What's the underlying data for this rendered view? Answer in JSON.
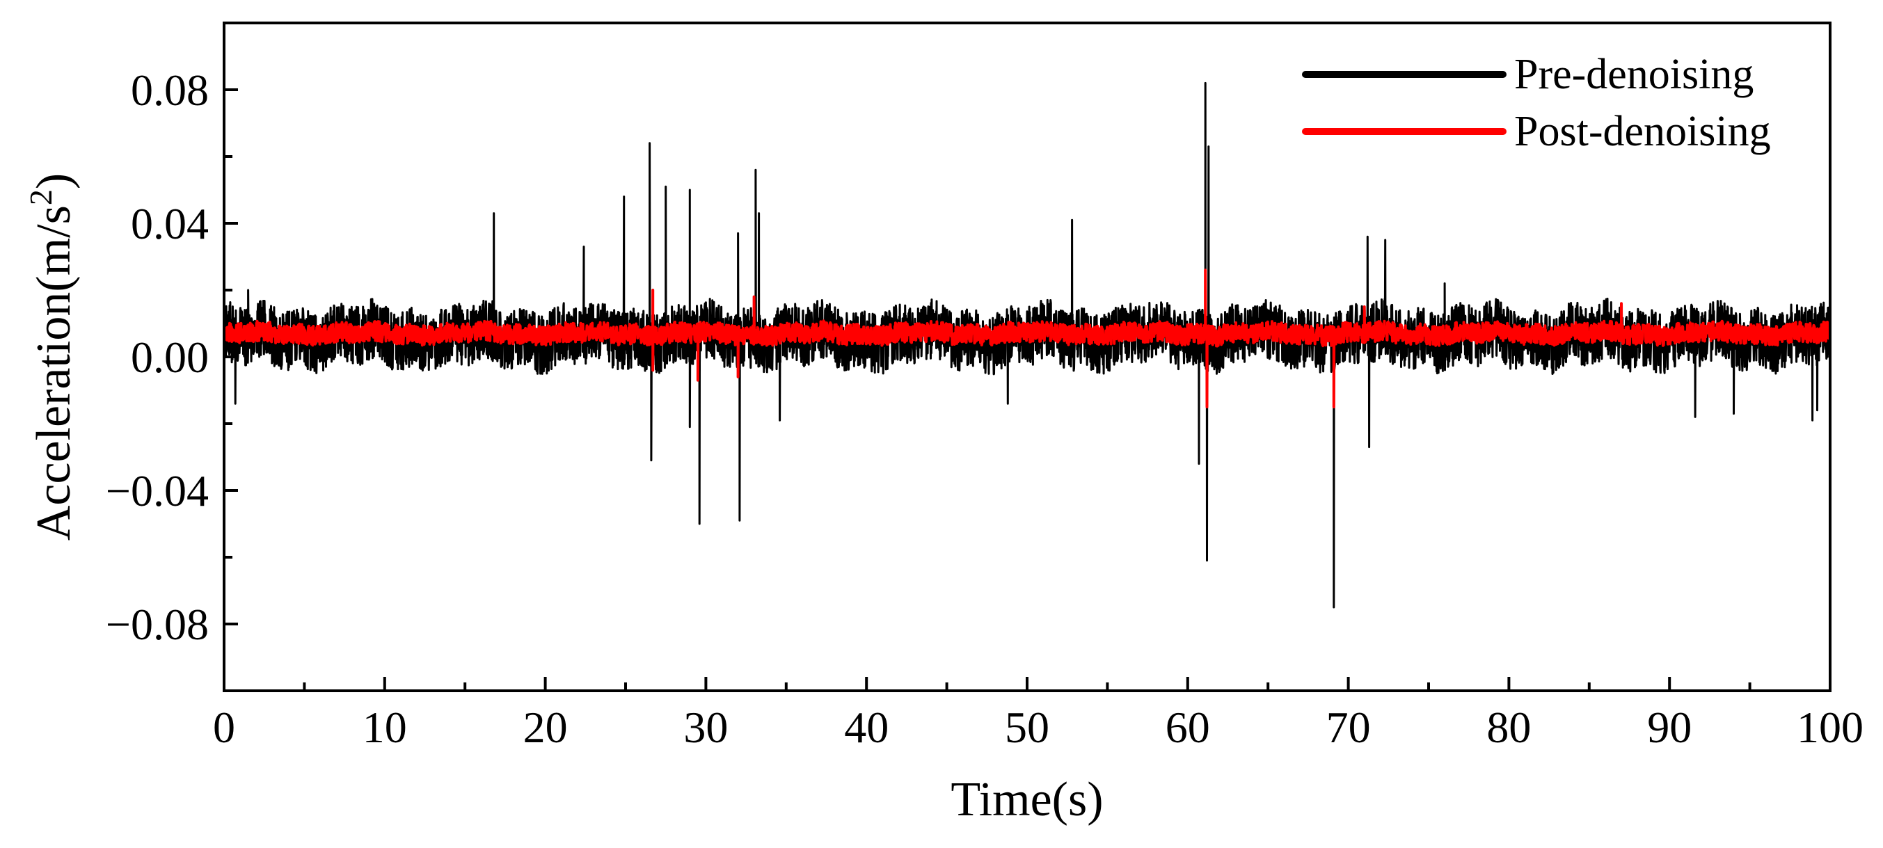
{
  "chart_data": {
    "type": "line",
    "title": "",
    "xlabel": "Time(s)",
    "ylabel_main": "Acceleration(m/s",
    "ylabel_sup": "2",
    "ylabel_close": ")",
    "xlim": [
      0,
      100
    ],
    "ylim": [
      -0.1,
      0.1
    ],
    "x_ticks": [
      0,
      10,
      20,
      30,
      40,
      50,
      60,
      70,
      80,
      90,
      100
    ],
    "x_tick_labels": [
      "0",
      "10",
      "20",
      "30",
      "40",
      "50",
      "60",
      "70",
      "80",
      "90",
      "100"
    ],
    "y_ticks": [
      0.08,
      0.04,
      0.0,
      -0.04,
      -0.08
    ],
    "y_tick_labels": [
      "0.08",
      "0.04",
      "0.00",
      "−0.04",
      "−0.08"
    ],
    "grid": false,
    "legend_position": "top-right",
    "series": [
      {
        "name": "Pre-denoising",
        "color": "#000000",
        "baseline": 0.006,
        "noise_amplitude": 0.012,
        "spikes": [
          [
            0.7,
            -0.014
          ],
          [
            1.5,
            0.02
          ],
          [
            16.8,
            0.043
          ],
          [
            22.4,
            0.033
          ],
          [
            24.9,
            0.048
          ],
          [
            26.5,
            0.064
          ],
          [
            26.6,
            -0.031
          ],
          [
            27.5,
            0.051
          ],
          [
            29.0,
            0.05
          ],
          [
            29.0,
            -0.021
          ],
          [
            29.6,
            -0.05
          ],
          [
            32.0,
            0.037
          ],
          [
            32.1,
            -0.049
          ],
          [
            33.1,
            0.056
          ],
          [
            33.3,
            0.043
          ],
          [
            34.6,
            -0.019
          ],
          [
            48.8,
            -0.014
          ],
          [
            52.8,
            0.041
          ],
          [
            60.7,
            -0.032
          ],
          [
            61.1,
            0.082
          ],
          [
            61.2,
            -0.061
          ],
          [
            61.3,
            0.063
          ],
          [
            69.1,
            -0.075
          ],
          [
            71.2,
            0.036
          ],
          [
            71.3,
            -0.027
          ],
          [
            72.3,
            0.035
          ],
          [
            76.0,
            0.022
          ],
          [
            91.6,
            -0.018
          ],
          [
            94.0,
            -0.017
          ],
          [
            98.9,
            -0.019
          ],
          [
            99.2,
            -0.016
          ]
        ]
      },
      {
        "name": "Post-denoising",
        "color": "#ff0000",
        "baseline": 0.007,
        "noise_amplitude": 0.004,
        "spikes": [
          [
            26.7,
            0.02
          ],
          [
            26.7,
            -0.004
          ],
          [
            29.5,
            -0.007
          ],
          [
            32.0,
            -0.006
          ],
          [
            33.0,
            0.018
          ],
          [
            61.1,
            0.026
          ],
          [
            61.2,
            -0.015
          ],
          [
            69.1,
            -0.015
          ],
          [
            71.0,
            0.015
          ],
          [
            87.0,
            0.016
          ]
        ]
      }
    ]
  }
}
